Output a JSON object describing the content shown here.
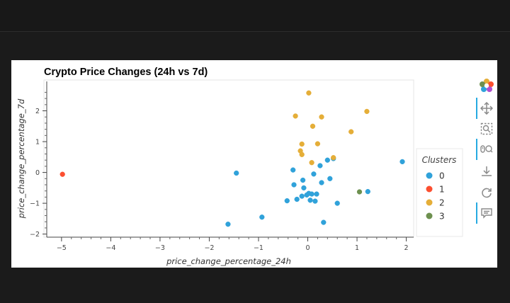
{
  "chart_data": {
    "type": "scatter",
    "title": "Crypto Price Changes (24h vs 7d)",
    "xlabel": "price_change_percentage_24h",
    "ylabel": "price_change_percentage_7d",
    "xlim": [
      -5.3,
      2.15
    ],
    "ylim": [
      -2.1,
      3.0
    ],
    "xticks": [
      -5,
      -4,
      -3,
      -2,
      -1,
      0,
      1,
      2
    ],
    "yticks": [
      -2,
      -1,
      0,
      1,
      2
    ],
    "grid": false,
    "legend": {
      "title": "Clusters",
      "position": "right"
    },
    "series": [
      {
        "name": "0",
        "color": "#30a2da",
        "points": [
          [
            -1.45,
            -0.02
          ],
          [
            -1.62,
            -1.68
          ],
          [
            -0.93,
            -1.45
          ],
          [
            -0.42,
            -0.92
          ],
          [
            -0.3,
            0.08
          ],
          [
            -0.28,
            -0.4
          ],
          [
            -0.22,
            -0.87
          ],
          [
            -0.12,
            -0.77
          ],
          [
            -0.1,
            -0.25
          ],
          [
            -0.08,
            -0.5
          ],
          [
            -0.02,
            -0.73
          ],
          [
            0.02,
            -0.68
          ],
          [
            0.05,
            -0.9
          ],
          [
            0.08,
            -0.7
          ],
          [
            0.12,
            -0.05
          ],
          [
            0.15,
            -0.93
          ],
          [
            0.18,
            -0.7
          ],
          [
            0.25,
            0.22
          ],
          [
            0.28,
            -0.33
          ],
          [
            0.32,
            -1.62
          ],
          [
            0.4,
            0.4
          ],
          [
            0.45,
            -0.2
          ],
          [
            0.52,
            0.45
          ],
          [
            0.6,
            -1.0
          ],
          [
            1.22,
            -0.62
          ],
          [
            1.92,
            0.35
          ]
        ]
      },
      {
        "name": "1",
        "color": "#fc4f30",
        "points": [
          [
            -4.98,
            -0.06
          ]
        ]
      },
      {
        "name": "2",
        "color": "#e5ae38",
        "points": [
          [
            0.02,
            2.58
          ],
          [
            -0.25,
            1.83
          ],
          [
            0.28,
            1.8
          ],
          [
            0.1,
            1.5
          ],
          [
            1.2,
            1.98
          ],
          [
            0.88,
            1.32
          ],
          [
            -0.12,
            0.92
          ],
          [
            0.2,
            0.93
          ],
          [
            -0.15,
            0.7
          ],
          [
            -0.12,
            0.58
          ],
          [
            0.08,
            0.32
          ],
          [
            0.52,
            0.48
          ]
        ]
      },
      {
        "name": "3",
        "color": "#6d904f",
        "points": [
          [
            1.05,
            -0.63
          ]
        ]
      }
    ]
  },
  "toolbar": {
    "tools": [
      {
        "name": "bokeh-logo-icon",
        "active": false
      },
      {
        "name": "pan-icon",
        "active": true
      },
      {
        "name": "box-zoom-icon",
        "active": false
      },
      {
        "name": "wheel-zoom-icon",
        "active": true
      },
      {
        "name": "save-icon",
        "active": false
      },
      {
        "name": "reset-icon",
        "active": false
      },
      {
        "name": "hover-icon",
        "active": true
      }
    ]
  }
}
